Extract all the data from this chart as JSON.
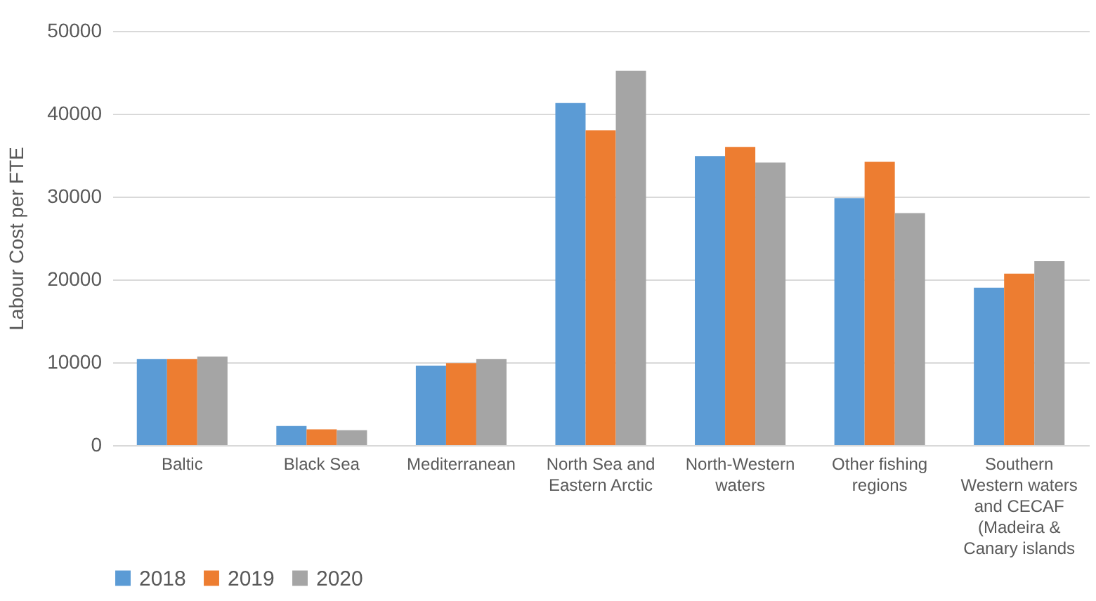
{
  "chart_data": {
    "type": "bar",
    "ylabel": "Labour Cost per FTE",
    "categories": [
      "Baltic",
      "Black Sea",
      "Mediterranean",
      "North Sea and Eastern Arctic",
      "North-Western waters",
      "Other fishing regions",
      "Southern Western waters and CECAF (Madeira & Canary islands"
    ],
    "series": [
      {
        "name": "2018",
        "color": "#5b9bd5",
        "values": [
          10400,
          2300,
          9600,
          41300,
          34900,
          29800,
          19000
        ]
      },
      {
        "name": "2019",
        "color": "#ed7d31",
        "values": [
          10400,
          1900,
          9900,
          38000,
          36000,
          34200,
          20700
        ]
      },
      {
        "name": "2020",
        "color": "#a5a5a5",
        "values": [
          10700,
          1800,
          10400,
          45200,
          34100,
          28000,
          22200
        ]
      }
    ],
    "ylim": [
      0,
      50000
    ],
    "yticks": [
      0,
      10000,
      20000,
      30000,
      40000,
      50000
    ],
    "grid": "y",
    "legend": "bottom"
  }
}
